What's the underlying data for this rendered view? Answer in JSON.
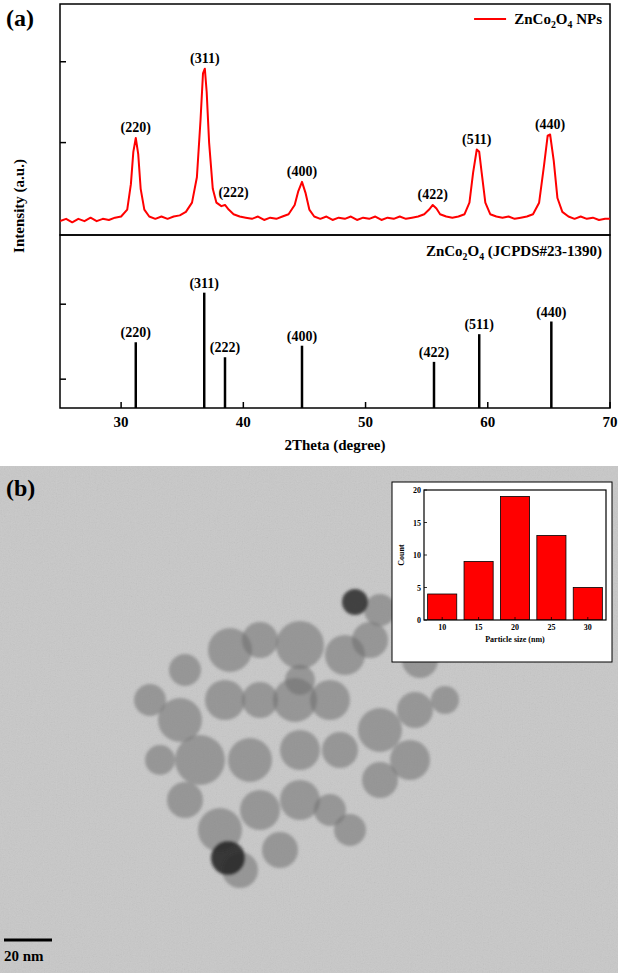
{
  "chart_data": [
    {
      "type": "line",
      "y_label": "Intensity (a.u.)",
      "legend": "upper right",
      "tick_labels": false,
      "xlim": [
        25,
        70
      ],
      "xticks": [
        30,
        40,
        50,
        60,
        70
      ],
      "ylim": [
        0,
        100
      ],
      "yticks": [
        40,
        75
      ],
      "x": [
        25,
        25.5,
        26,
        26.5,
        27,
        27.5,
        28,
        28.5,
        29,
        29.5,
        30,
        30.5,
        30.8,
        31.0,
        31.2,
        31.4,
        31.6,
        31.9,
        32.3,
        32.8,
        33.3,
        33.8,
        34.3,
        34.8,
        35.3,
        35.8,
        36.2,
        36.5,
        36.7,
        36.85,
        37.0,
        37.2,
        37.5,
        37.8,
        38.2,
        38.5,
        38.8,
        39.2,
        39.7,
        40.2,
        40.7,
        41.2,
        41.7,
        42.2,
        42.7,
        43.2,
        43.7,
        44.2,
        44.5,
        44.8,
        45.1,
        45.4,
        45.8,
        46.3,
        46.8,
        47.3,
        47.8,
        48.3,
        48.8,
        49.3,
        49.8,
        50.3,
        50.8,
        51.3,
        51.8,
        52.3,
        52.8,
        53.3,
        53.8,
        54.3,
        54.8,
        55.2,
        55.5,
        55.8,
        56.1,
        56.6,
        57.1,
        57.6,
        58.1,
        58.5,
        58.8,
        59.1,
        59.3,
        59.5,
        59.8,
        60.2,
        60.7,
        61.2,
        61.7,
        62.2,
        62.7,
        63.2,
        63.7,
        64.2,
        64.6,
        64.9,
        65.1,
        65.4,
        65.7,
        66.1,
        66.6,
        67.1,
        67.6,
        68.1,
        68.6,
        69.1,
        69.6,
        70
      ],
      "series": [
        {
          "name": "ZnCo2O4 NPs",
          "color": "#ff0000",
          "values": [
            6,
            7,
            5.5,
            7,
            6,
            7.5,
            6,
            7,
            6.5,
            7.5,
            8,
            11,
            22,
            36,
            42,
            35,
            20,
            11,
            8,
            7,
            8,
            7,
            8,
            8.5,
            10,
            14,
            25,
            50,
            70,
            72,
            62,
            40,
            20,
            14,
            12.5,
            13,
            11,
            9,
            8,
            7.5,
            7,
            8,
            6.5,
            7.5,
            7,
            8,
            9,
            13,
            19,
            23,
            18,
            11,
            8,
            7,
            8,
            6.5,
            7.5,
            7,
            8,
            6.5,
            7.5,
            7,
            8,
            6.5,
            7.5,
            7,
            8,
            7,
            7.5,
            8,
            9,
            11,
            13,
            11.5,
            9,
            8,
            7.5,
            8,
            9,
            14,
            27,
            37,
            36,
            27,
            14,
            9,
            8,
            7.5,
            8,
            7,
            7.5,
            8,
            9,
            14,
            30,
            43,
            43.5,
            32,
            16,
            10,
            8,
            7,
            8,
            7,
            7.5,
            6.5,
            7,
            7
          ]
        }
      ],
      "annotations": [
        {
          "text": "(220)",
          "x": 31.2
        },
        {
          "text": "(311)",
          "x": 36.85
        },
        {
          "text": "(222)",
          "x": 38.5
        },
        {
          "text": "(400)",
          "x": 44.8
        },
        {
          "text": "(422)",
          "x": 55.5
        },
        {
          "text": "(511)",
          "x": 59.1
        },
        {
          "text": "(440)",
          "x": 65.1
        }
      ]
    },
    {
      "type": "stick",
      "title": "ZnCo2O4 (JCPDS#23-1390)",
      "x_label": "2Theta (degree)",
      "tick_labels": "x",
      "color": "#000000",
      "xlim": [
        25,
        70
      ],
      "xticks": [
        30,
        40,
        50,
        60,
        70
      ],
      "ylim": [
        0,
        150
      ],
      "yticks": [
        25,
        90
      ],
      "x": [
        31.2,
        36.8,
        38.5,
        44.8,
        55.6,
        59.3,
        65.2
      ],
      "values": [
        57,
        100,
        44,
        54,
        40,
        64,
        75
      ],
      "labels": [
        "(220)",
        "(311)",
        "(222)",
        "(400)",
        "(422)",
        "(511)",
        "(440)"
      ]
    },
    {
      "type": "bar",
      "x_label": "Particle size (nm)",
      "y_label": "Count",
      "color": "#ff0000",
      "xlim": [
        7.5,
        32.5
      ],
      "xticks": [
        10,
        15,
        20,
        25,
        30
      ],
      "ylim": [
        0,
        20
      ],
      "yticks": [
        0,
        5,
        10,
        15,
        20
      ],
      "x": [
        10,
        15,
        20,
        25,
        30
      ],
      "values": [
        4,
        9,
        19,
        13,
        5
      ]
    }
  ],
  "figure": {
    "panel_labels": [
      "(a)",
      "(b)"
    ],
    "scale_bar": "20 nm"
  }
}
